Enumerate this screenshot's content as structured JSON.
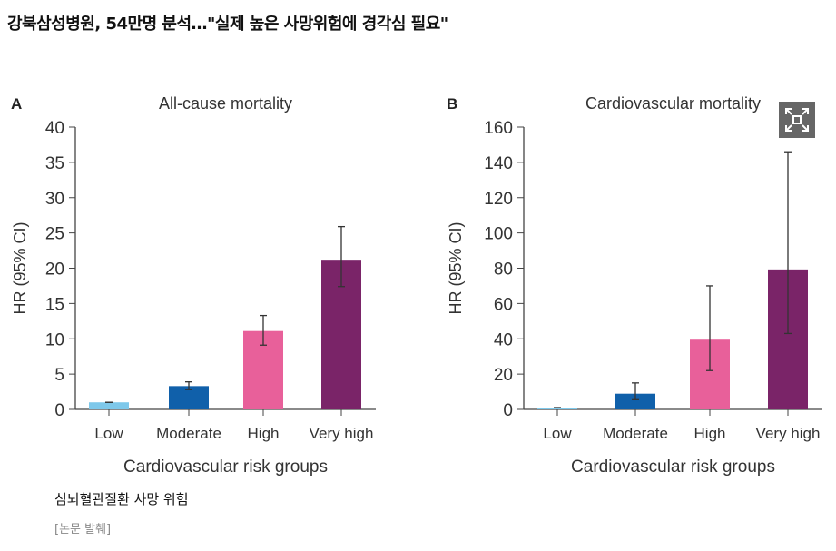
{
  "headline": "강북삼성병원, 54만명 분석…\"실제 높은 사망위험에 경각심 필요\"",
  "caption": "심뇌혈관질환 사망 위험",
  "source": "[논문 발췌]",
  "expand_icon": "expand-icon",
  "chart_data": [
    {
      "type": "bar",
      "panel": "A",
      "title": "All-cause mortality",
      "xlabel": "Cardiovascular risk groups",
      "ylabel": "HR (95% CI)",
      "ylim": [
        0,
        40
      ],
      "yticks": [
        0,
        5,
        10,
        15,
        20,
        25,
        30,
        35,
        40
      ],
      "categories": [
        "Low",
        "Moderate",
        "High",
        "Very high"
      ],
      "values": [
        1,
        3.3,
        11.1,
        21.2
      ],
      "ci_low": [
        1,
        2.8,
        9.1,
        17.4
      ],
      "ci_high": [
        1,
        3.9,
        13.3,
        25.9
      ],
      "colors": [
        "#7ec8ea",
        "#1060aa",
        "#e8609a",
        "#7a2468"
      ],
      "grid": false
    },
    {
      "type": "bar",
      "panel": "B",
      "title": "Cardiovascular mortality",
      "xlabel": "Cardiovascular risk groups",
      "ylabel": "HR (95% CI)",
      "ylim": [
        0,
        160
      ],
      "yticks": [
        0,
        20,
        40,
        60,
        80,
        100,
        120,
        140,
        160
      ],
      "categories": [
        "Low",
        "Moderate",
        "High",
        "Very high"
      ],
      "values": [
        1,
        8.9,
        39.5,
        79.3
      ],
      "ci_low": [
        1,
        5.5,
        22,
        43
      ],
      "ci_high": [
        1,
        15,
        70,
        146
      ],
      "colors": [
        "#7ec8ea",
        "#1060aa",
        "#e8609a",
        "#7a2468"
      ],
      "grid": false
    }
  ]
}
